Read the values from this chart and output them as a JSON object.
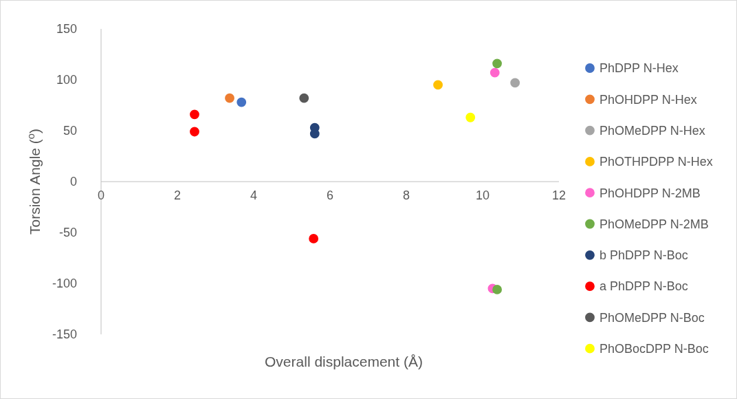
{
  "chart_data": {
    "type": "scatter",
    "xlabel": "Overall displacement (Å)",
    "ylabel": "Torsion Angle ($^{o}$)",
    "xlim": [
      0,
      12
    ],
    "xticks": [
      0,
      2,
      4,
      6,
      8,
      10,
      12
    ],
    "ylim": [
      -150,
      150
    ],
    "yticks": [
      -150,
      -100,
      -50,
      0,
      50,
      100,
      150
    ],
    "grid": false,
    "legend": "right",
    "marker": "circle",
    "series": [
      {
        "name": "PhDPP N-Hex",
        "color": "#4472c4",
        "x": [
          3.68
        ],
        "values": [
          78
        ]
      },
      {
        "name": "PhOHDPP N-Hex",
        "color": "#ed7d31",
        "x": [
          3.37
        ],
        "values": [
          82
        ]
      },
      {
        "name": "PhOMeDPP N-Hex",
        "color": "#a5a5a5",
        "x": [
          10.85
        ],
        "values": [
          97
        ]
      },
      {
        "name": "PhOTHPDPP N-Hex",
        "color": "#ffc000",
        "x": [
          8.83
        ],
        "values": [
          95
        ]
      },
      {
        "name": "PhOHDPP N-2MB",
        "color": "#ff66cc",
        "x": [
          10.32,
          10.26
        ],
        "values": [
          107,
          -105
        ]
      },
      {
        "name": "PhOMeDPP N-2MB",
        "color": "#70ad47",
        "x": [
          10.38,
          10.38
        ],
        "values": [
          116,
          -106
        ]
      },
      {
        "name": "b PhDPP N-Boc",
        "color": "#264478",
        "x": [
          5.6,
          5.6
        ],
        "values": [
          53,
          47
        ]
      },
      {
        "name": "a PhDPP N-Boc",
        "color": "#ff0000",
        "x": [
          2.45,
          2.45,
          5.57
        ],
        "values": [
          66,
          49,
          -56
        ]
      },
      {
        "name": "PhOMeDPP N-Boc",
        "color": "#595959",
        "x": [
          5.32
        ],
        "values": [
          82
        ]
      },
      {
        "name": "PhOBocDPP N-Boc",
        "color": "#ffff00",
        "x": [
          9.68
        ],
        "values": [
          63
        ]
      }
    ]
  }
}
